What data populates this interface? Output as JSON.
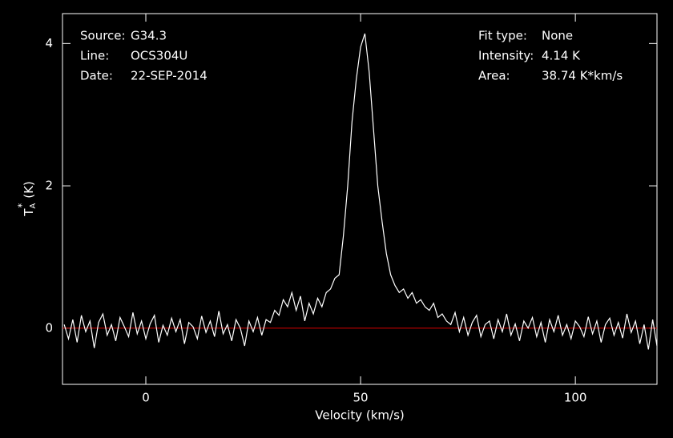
{
  "chart_data": {
    "type": "line",
    "xlabel": "Velocity (km/s)",
    "ylabel": {
      "main": "T",
      "sub": "A",
      "sup": "*",
      "unit": "(K)"
    },
    "annotations_left": [
      {
        "label": "Source:",
        "value": "G34.3"
      },
      {
        "label": "Line:",
        "value": "OCS304U"
      },
      {
        "label": "Date:",
        "value": "22-SEP-2014"
      }
    ],
    "annotations_right": [
      {
        "label": "Fit type:",
        "value": "None"
      },
      {
        "label": "Intensity:",
        "value": "4.14 K"
      },
      {
        "label": "Area:",
        "value": "38.74 K*km/s"
      }
    ],
    "xlim": [
      -19.4,
      119
    ],
    "ylim": [
      -0.79,
      4.42
    ],
    "xticks": [
      0,
      50,
      100
    ],
    "yticks": [
      0,
      2,
      4
    ],
    "baseline": {
      "value": 0,
      "color": "#c00000"
    },
    "x": [
      -19,
      -18,
      -17,
      -16,
      -15,
      -14,
      -13,
      -12,
      -11,
      -10,
      -9,
      -8,
      -7,
      -6,
      -5,
      -4,
      -3,
      -2,
      -1,
      0,
      1,
      2,
      3,
      4,
      5,
      6,
      7,
      8,
      9,
      10,
      11,
      12,
      13,
      14,
      15,
      16,
      17,
      18,
      19,
      20,
      21,
      22,
      23,
      24,
      25,
      26,
      27,
      28,
      29,
      30,
      31,
      32,
      33,
      34,
      35,
      36,
      37,
      38,
      39,
      40,
      41,
      42,
      43,
      44,
      45,
      46,
      47,
      48,
      49,
      50,
      51,
      52,
      53,
      54,
      55,
      56,
      57,
      58,
      59,
      60,
      61,
      62,
      63,
      64,
      65,
      66,
      67,
      68,
      69,
      70,
      71,
      72,
      73,
      74,
      75,
      76,
      77,
      78,
      79,
      80,
      81,
      82,
      83,
      84,
      85,
      86,
      87,
      88,
      89,
      90,
      91,
      92,
      93,
      94,
      95,
      96,
      97,
      98,
      99,
      100,
      101,
      102,
      103,
      104,
      105,
      106,
      107,
      108,
      109,
      110,
      111,
      112,
      113,
      114,
      115,
      116,
      117,
      118,
      119
    ],
    "series": [
      {
        "color": "#ffffff",
        "values": [
          0.05,
          -0.15,
          0.12,
          -0.2,
          0.18,
          -0.05,
          0.1,
          -0.28,
          0.08,
          0.2,
          -0.1,
          0.05,
          -0.18,
          0.15,
          0.02,
          -0.12,
          0.22,
          -0.08,
          0.1,
          -0.15,
          0.06,
          0.18,
          -0.2,
          0.04,
          -0.1,
          0.14,
          -0.05,
          0.12,
          -0.22,
          0.08,
          0.02,
          -0.15,
          0.17,
          -0.06,
          0.1,
          -0.12,
          0.24,
          -0.08,
          0.05,
          -0.18,
          0.12,
          0.0,
          -0.25,
          0.1,
          -0.05,
          0.15,
          -0.1,
          0.12,
          0.08,
          0.25,
          0.18,
          0.4,
          0.3,
          0.5,
          0.25,
          0.45,
          0.1,
          0.35,
          0.2,
          0.42,
          0.3,
          0.5,
          0.55,
          0.7,
          0.75,
          1.3,
          2.0,
          2.9,
          3.5,
          3.95,
          4.14,
          3.6,
          2.8,
          2.0,
          1.5,
          1.05,
          0.75,
          0.6,
          0.5,
          0.55,
          0.42,
          0.5,
          0.35,
          0.4,
          0.3,
          0.25,
          0.35,
          0.15,
          0.2,
          0.1,
          0.05,
          0.22,
          -0.05,
          0.15,
          -0.1,
          0.08,
          0.18,
          -0.12,
          0.05,
          0.1,
          -0.15,
          0.12,
          -0.05,
          0.2,
          -0.1,
          0.06,
          -0.18,
          0.1,
          0.0,
          0.15,
          -0.12,
          0.08,
          -0.2,
          0.12,
          -0.05,
          0.18,
          -0.1,
          0.05,
          -0.15,
          0.1,
          0.02,
          -0.12,
          0.16,
          -0.08,
          0.1,
          -0.2,
          0.05,
          0.14,
          -0.1,
          0.08,
          -0.14,
          0.2,
          -0.06,
          0.1,
          -0.22,
          0.05,
          -0.3,
          0.12,
          -0.25
        ]
      }
    ]
  }
}
